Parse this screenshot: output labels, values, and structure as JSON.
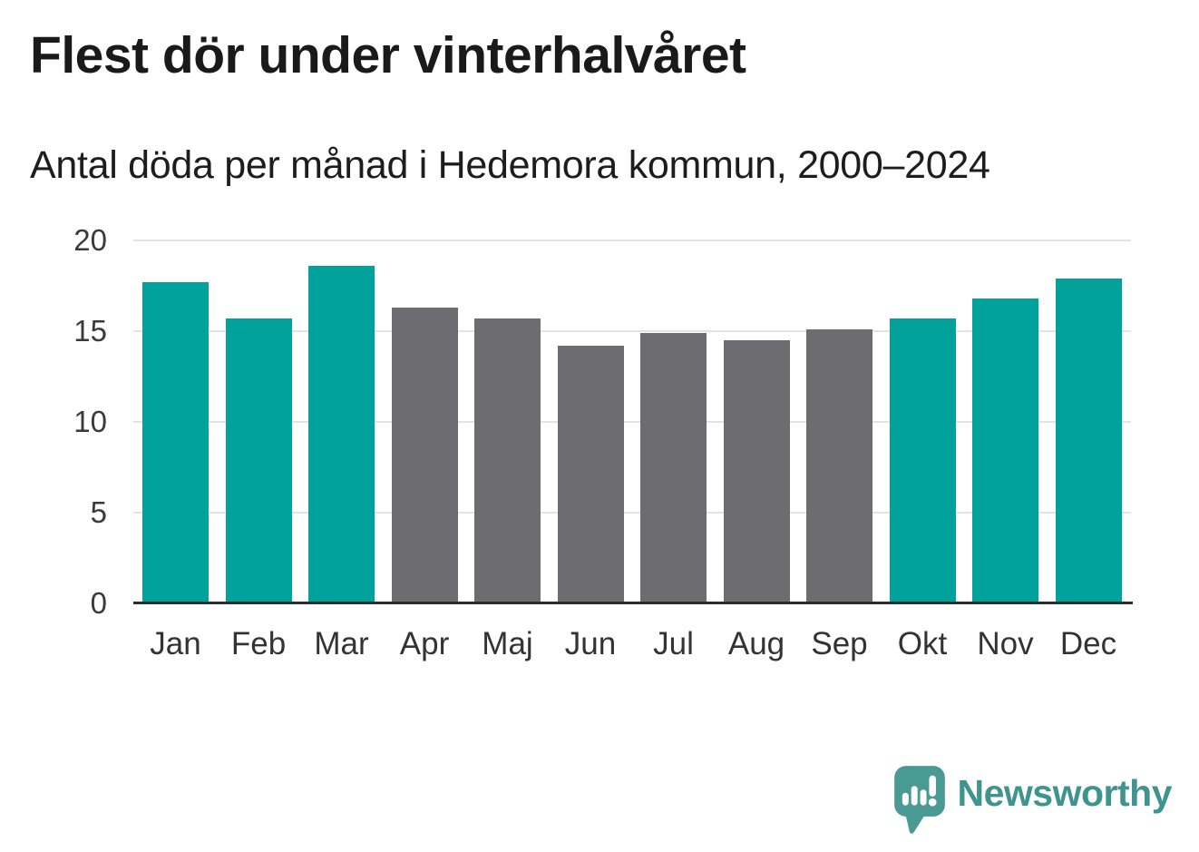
{
  "header": {
    "title": "Flest dör under vinterhalvåret",
    "subtitle": "Antal döda per månad i Hedemora kommun, 2000–2024"
  },
  "chart_data": {
    "type": "bar",
    "title": "Flest dör under vinterhalvåret",
    "subtitle": "Antal döda per månad i Hedemora kommun, 2000–2024",
    "categories": [
      "Jan",
      "Feb",
      "Mar",
      "Apr",
      "Maj",
      "Jun",
      "Jul",
      "Aug",
      "Sep",
      "Okt",
      "Nov",
      "Dec"
    ],
    "values": [
      17.7,
      15.7,
      18.6,
      16.3,
      15.7,
      14.2,
      14.9,
      14.5,
      15.1,
      15.7,
      16.8,
      17.9
    ],
    "bar_color_keys": [
      "winter",
      "winter",
      "winter",
      "summer",
      "summer",
      "summer",
      "summer",
      "summer",
      "summer",
      "winter",
      "winter",
      "winter"
    ],
    "palette": {
      "winter": "#00a29b",
      "summer": "#6d6c71"
    },
    "xlabel": "",
    "ylabel": "",
    "ylim": [
      0,
      20
    ],
    "yticks": [
      0,
      5,
      10,
      15,
      20
    ],
    "grid": "horizontal",
    "legend": "none"
  },
  "footer": {
    "brand": "Newsworthy",
    "brand_color": "#3f948e",
    "logo_icon": "newsworthy-speech-bubble-bar-chart-icon",
    "logo_fill": "#4a9a94"
  }
}
